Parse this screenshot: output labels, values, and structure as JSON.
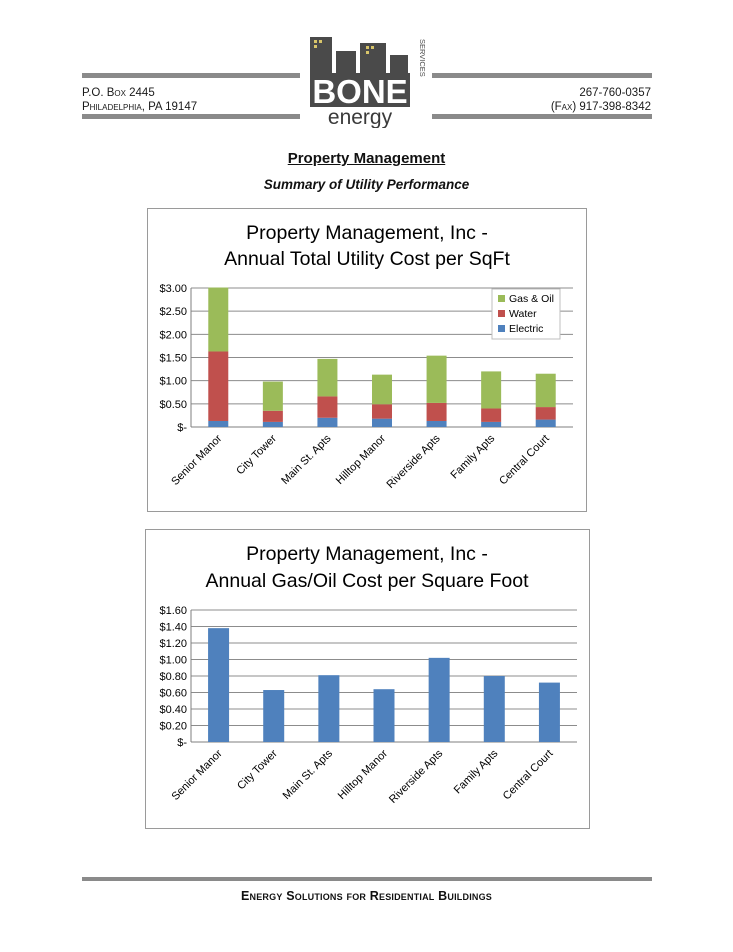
{
  "header": {
    "address_line1": "P.O. Box 2445",
    "address_line2": "Philadelphia, PA  19147",
    "phone": "267-760-0357",
    "fax": "(Fax) 917-398-8342",
    "logo_word": "BONE",
    "logo_sub": "energy",
    "logo_side": "SERVICES"
  },
  "document": {
    "title": "Property Management",
    "subtitle": "Summary of Utility Performance"
  },
  "chart_data": [
    {
      "type": "bar",
      "stacked": true,
      "title_line1": "Property Management, Inc -",
      "title_line2": "Annual Total Utility Cost per SqFt",
      "categories": [
        "Senior Manor",
        "City Tower",
        "Main St. Apts",
        "Hilltop Manor",
        "Riverside Apts",
        "Family Apts",
        "Central Court"
      ],
      "series": [
        {
          "name": "Electric",
          "color": "#4f81bd",
          "values": [
            0.13,
            0.11,
            0.2,
            0.18,
            0.13,
            0.11,
            0.16
          ]
        },
        {
          "name": "Water",
          "color": "#c0504d",
          "values": [
            1.5,
            0.24,
            0.46,
            0.31,
            0.39,
            0.29,
            0.27
          ]
        },
        {
          "name": "Gas & Oil",
          "color": "#9bbb59",
          "values": [
            1.38,
            0.63,
            0.81,
            0.64,
            1.02,
            0.8,
            0.72
          ]
        }
      ],
      "legend_order": [
        "Gas & Oil",
        "Water",
        "Electric"
      ],
      "legend": "top-right",
      "ylim": [
        0,
        3
      ],
      "yticks": [
        0,
        0.5,
        1,
        1.5,
        2,
        2.5,
        3
      ],
      "ytick_labels": [
        "$-",
        "$0.50",
        "$1.00",
        "$1.50",
        "$2.00",
        "$2.50",
        "$3.00"
      ],
      "grid": true
    },
    {
      "type": "bar",
      "title_line1": "Property Management, Inc -",
      "title_line2": "Annual Gas/Oil Cost per Square Foot",
      "categories": [
        "Senior Manor",
        "City Tower",
        "Main St. Apts",
        "Hilltop Manor",
        "Riverside Apts",
        "Family Apts",
        "Central Court"
      ],
      "series": [
        {
          "name": "Gas/Oil",
          "color": "#4f81bd",
          "values": [
            1.38,
            0.63,
            0.81,
            0.64,
            1.02,
            0.8,
            0.72
          ]
        }
      ],
      "ylim": [
        0,
        1.6
      ],
      "yticks": [
        0,
        0.2,
        0.4,
        0.6,
        0.8,
        1.0,
        1.2,
        1.4,
        1.6
      ],
      "ytick_labels": [
        "$-",
        "$0.20",
        "$0.40",
        "$0.60",
        "$0.80",
        "$1.00",
        "$1.20",
        "$1.40",
        "$1.60"
      ],
      "grid": true
    }
  ],
  "footer": {
    "tagline": "Energy Solutions for Residential Buildings"
  }
}
